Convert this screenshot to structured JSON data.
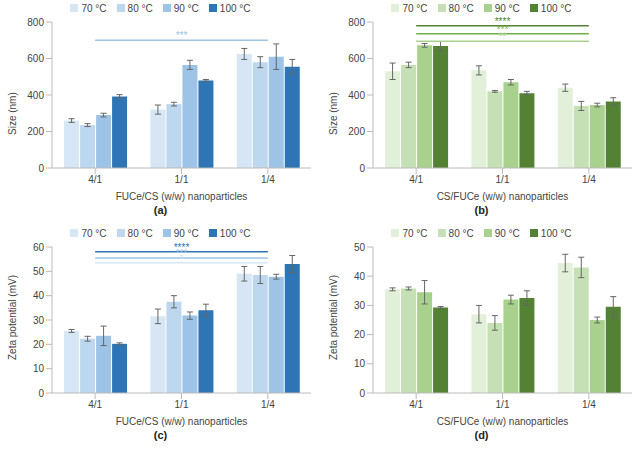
{
  "chart_data": [
    {
      "type": "bar",
      "panel": "(a)",
      "x_label": "FUCe/CS (w/w) nanoparticles",
      "y_label": "Size (nm)",
      "categories": [
        "4/1",
        "1/1",
        "1/4"
      ],
      "legend": "top",
      "grid": false,
      "ylim": [
        0,
        800
      ],
      "yticks": [
        0,
        200,
        400,
        600,
        800
      ],
      "series": [
        {
          "name": "70 °C",
          "color": "#d6e6f4",
          "values": [
            260,
            320,
            625
          ],
          "errors": [
            10,
            25,
            30
          ]
        },
        {
          "name": "80 °C",
          "color": "#bdd7ee",
          "values": [
            235,
            350,
            580
          ],
          "errors": [
            8,
            10,
            30
          ]
        },
        {
          "name": "90 °C",
          "color": "#9dc3e6",
          "values": [
            290,
            565,
            610
          ],
          "errors": [
            10,
            25,
            70
          ]
        },
        {
          "name": "100 °C",
          "color": "#2e75b6",
          "values": [
            392,
            480,
            555
          ],
          "errors": [
            10,
            5,
            40
          ]
        }
      ],
      "annotations": [
        {
          "label": "***",
          "from": "4/1",
          "to": "1/4",
          "y": 700,
          "color": "#9dc3e6"
        }
      ]
    },
    {
      "type": "bar",
      "panel": "(b)",
      "x_label": "CS/FUCe (w/w) nanoparticles",
      "y_label": "Size (nm)",
      "categories": [
        "4/1",
        "1/1",
        "1/4"
      ],
      "legend": "top",
      "grid": false,
      "ylim": [
        0,
        800
      ],
      "yticks": [
        0,
        200,
        400,
        600,
        800
      ],
      "series": [
        {
          "name": "70 °C",
          "color": "#e2f0d9",
          "values": [
            530,
            535,
            440
          ],
          "errors": [
            45,
            25,
            20
          ]
        },
        {
          "name": "80 °C",
          "color": "#c5e0b4",
          "values": [
            565,
            420,
            340
          ],
          "errors": [
            15,
            5,
            25
          ]
        },
        {
          "name": "90 °C",
          "color": "#a9d18e",
          "values": [
            672,
            470,
            345
          ],
          "errors": [
            10,
            15,
            10
          ]
        },
        {
          "name": "100 °C",
          "color": "#548235",
          "values": [
            668,
            410,
            365
          ],
          "errors": [
            25,
            10,
            20
          ]
        }
      ],
      "annotations": [
        {
          "label": "****",
          "from": "4/1",
          "to": "1/4",
          "y": 780,
          "color": "#548235"
        },
        {
          "label": "***",
          "from": "4/1",
          "to": "1/4",
          "y": 735,
          "color": "#70ad47"
        },
        {
          "label": "**",
          "from": "4/1",
          "to": "1/4",
          "y": 695,
          "color": "#a9d18e"
        }
      ]
    },
    {
      "type": "bar",
      "panel": "(c)",
      "x_label": "FUCe/CS (w/w) nanoparticles",
      "y_label": "Zeta potential (mV)",
      "categories": [
        "4/1",
        "1/1",
        "1/4"
      ],
      "legend": "top",
      "grid": false,
      "ylim": [
        0,
        60
      ],
      "yticks": [
        0,
        10,
        20,
        30,
        40,
        50,
        60
      ],
      "series": [
        {
          "name": "70 °C",
          "color": "#d6e6f4",
          "values": [
            25.5,
            31.5,
            49
          ],
          "errors": [
            0.6,
            3,
            3
          ]
        },
        {
          "name": "80 °C",
          "color": "#bdd7ee",
          "values": [
            22.3,
            37.5,
            48.5
          ],
          "errors": [
            1,
            2.5,
            3.5
          ]
        },
        {
          "name": "90 °C",
          "color": "#9dc3e6",
          "values": [
            23.5,
            31.8,
            47.8
          ],
          "errors": [
            4,
            1.5,
            1
          ]
        },
        {
          "name": "100 °C",
          "color": "#2e75b6",
          "values": [
            20.2,
            34,
            53
          ],
          "errors": [
            0.4,
            2.5,
            3.5
          ]
        }
      ],
      "annotations": [
        {
          "label": "****",
          "from": "4/1",
          "to": "1/4",
          "y": 58,
          "color": "#2e75b6"
        },
        {
          "label": "***",
          "from": "4/1",
          "to": "1/4",
          "y": 55.5,
          "color": "#9dc3e6"
        },
        {
          "label": "*",
          "from": "4/1",
          "to": "1/4",
          "y": 53.5,
          "color": "#d6e6f4"
        }
      ]
    },
    {
      "type": "bar",
      "panel": "(d)",
      "x_label": "CS/FUCe (w/w) nanoparticles",
      "y_label": "Zeta potential (mV)",
      "categories": [
        "4/1",
        "1/1",
        "1/4"
      ],
      "legend": "top",
      "grid": false,
      "ylim": [
        0,
        50
      ],
      "yticks": [
        0,
        10,
        20,
        30,
        40,
        50
      ],
      "series": [
        {
          "name": "70 °C",
          "color": "#e2f0d9",
          "values": [
            35.5,
            27,
            44.5
          ],
          "errors": [
            0.5,
            3,
            3
          ]
        },
        {
          "name": "80 °C",
          "color": "#c5e0b4",
          "values": [
            35.8,
            24,
            43
          ],
          "errors": [
            0.5,
            2.5,
            3.5
          ]
        },
        {
          "name": "90 °C",
          "color": "#a9d18e",
          "values": [
            34.5,
            32,
            25
          ],
          "errors": [
            4,
            1.5,
            1
          ]
        },
        {
          "name": "100 °C",
          "color": "#548235",
          "values": [
            29.3,
            32.5,
            29.5
          ],
          "errors": [
            0.3,
            2.5,
            3.5
          ]
        }
      ],
      "annotations": []
    }
  ]
}
